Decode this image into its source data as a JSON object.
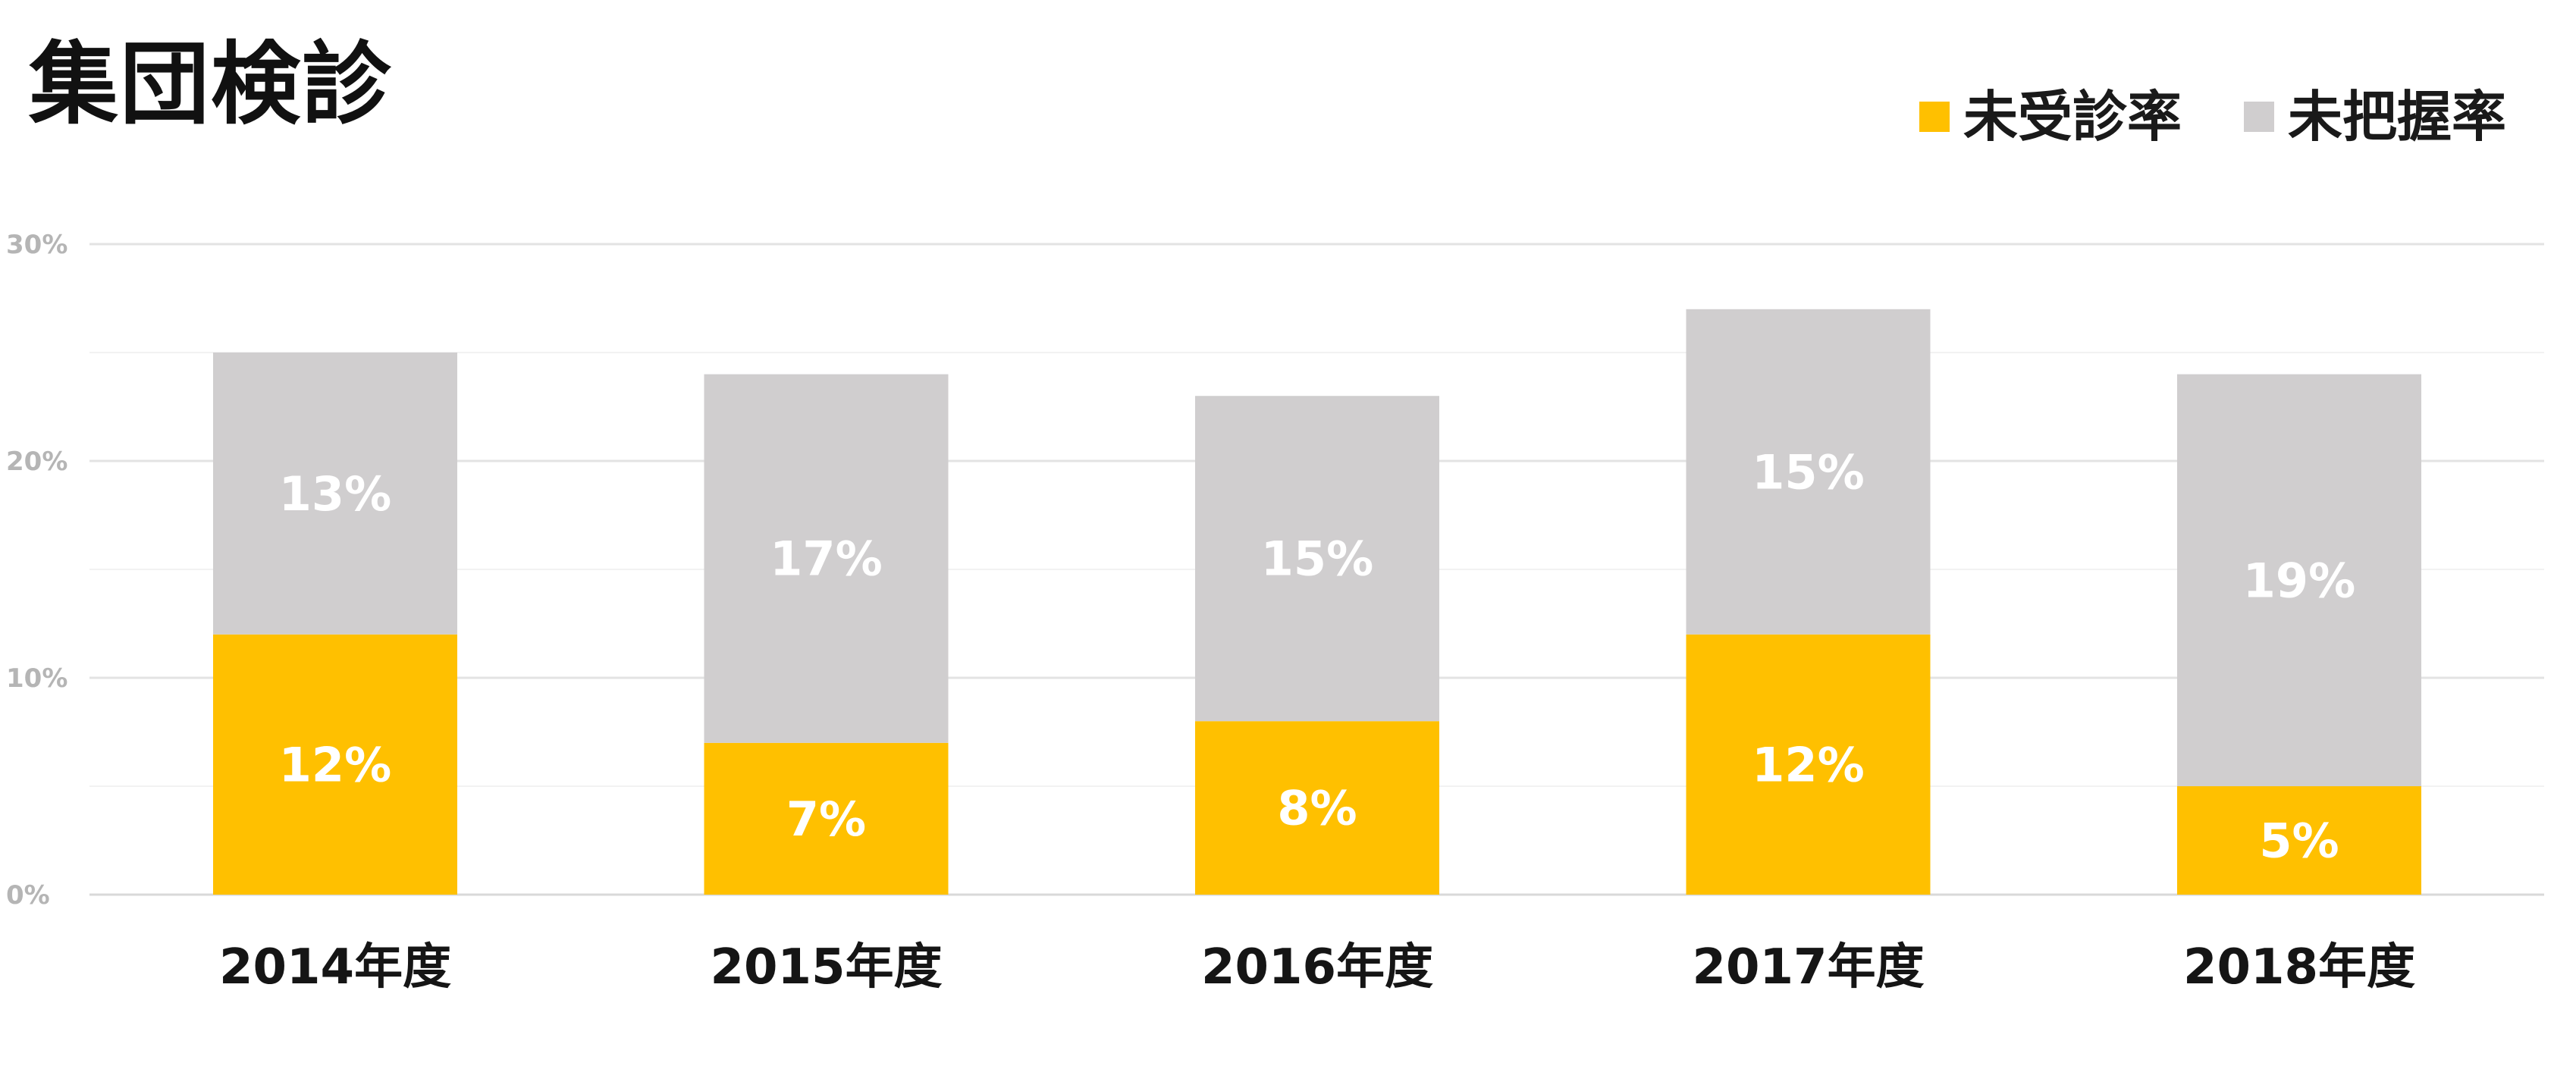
{
  "chart_data": {
    "type": "bar",
    "stacked": true,
    "title": "集団検診",
    "categories": [
      "2014年度",
      "2015年度",
      "2016年度",
      "2017年度",
      "2018年度"
    ],
    "series": [
      {
        "name": "未受診率",
        "color": "#FFC000",
        "values": [
          12,
          7,
          8,
          12,
          5
        ],
        "labels": [
          "12%",
          "7%",
          "8%",
          "12%",
          "5%"
        ]
      },
      {
        "name": "未把握率",
        "color": "#D0CECF",
        "values": [
          13,
          17,
          15,
          15,
          19
        ],
        "labels": [
          "13%",
          "17%",
          "15%",
          "15%",
          "19%"
        ]
      }
    ],
    "ylim": [
      0,
      30
    ],
    "yticks": [
      0,
      10,
      20,
      30
    ],
    "ytick_labels": [
      "0%",
      "10%",
      "20%",
      "30%"
    ],
    "grid": true,
    "legend_position": "top-right"
  }
}
